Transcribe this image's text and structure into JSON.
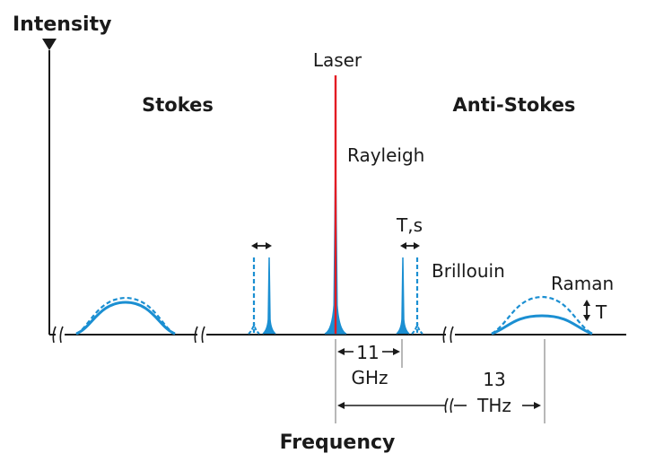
{
  "labels": {
    "y_axis": "Intensity",
    "x_axis": "Frequency",
    "stokes": "Stokes",
    "anti_stokes": "Anti-Stokes",
    "laser": "Laser",
    "rayleigh": "Rayleigh",
    "brillouin": "Brillouin",
    "raman": "Raman",
    "ts": "T,s",
    "t": "T",
    "brillouin_shift_value": "11",
    "brillouin_shift_unit": "GHz",
    "raman_shift_value": "13",
    "raman_shift_unit": "THz"
  },
  "colors": {
    "axis": "#1a1a1a",
    "spectrum": "#1b8fd2",
    "laser": "#e31b23",
    "guide": "#9a9a9a"
  }
}
